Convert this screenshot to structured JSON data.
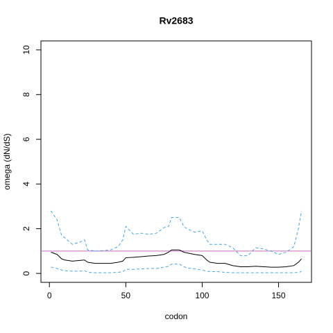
{
  "chart_data": {
    "type": "line",
    "title": "Rv2683",
    "xlabel": "codon",
    "ylabel": "omega (dN/dS)",
    "x": [
      1,
      5,
      8,
      10,
      15,
      20,
      23,
      25,
      30,
      35,
      40,
      45,
      48,
      50,
      55,
      60,
      65,
      70,
      75,
      78,
      80,
      85,
      88,
      90,
      95,
      100,
      103,
      105,
      110,
      115,
      120,
      125,
      130,
      135,
      140,
      145,
      150,
      155,
      160,
      163,
      165
    ],
    "series": [
      {
        "color": "#3ea6e8",
        "linestyle": "dashed",
        "values": [
          2.8,
          2.4,
          1.7,
          1.6,
          1.3,
          1.4,
          1.5,
          1.05,
          1.0,
          1.02,
          1.05,
          1.2,
          1.5,
          2.1,
          1.75,
          1.8,
          1.75,
          1.8,
          2.05,
          2.1,
          2.5,
          2.5,
          2.1,
          2.0,
          1.85,
          1.9,
          1.5,
          1.3,
          1.3,
          1.3,
          1.15,
          0.8,
          0.8,
          1.15,
          1.1,
          1.0,
          0.85,
          0.95,
          1.2,
          2.0,
          2.8
        ]
      },
      {
        "color": "#000000",
        "linestyle": "solid",
        "values": [
          0.95,
          0.85,
          0.65,
          0.6,
          0.55,
          0.58,
          0.6,
          0.5,
          0.45,
          0.45,
          0.45,
          0.5,
          0.55,
          0.7,
          0.72,
          0.75,
          0.78,
          0.8,
          0.85,
          0.95,
          1.05,
          1.05,
          0.95,
          0.92,
          0.85,
          0.8,
          0.6,
          0.5,
          0.45,
          0.45,
          0.35,
          0.3,
          0.3,
          0.32,
          0.3,
          0.28,
          0.28,
          0.3,
          0.35,
          0.5,
          0.65
        ]
      },
      {
        "color": "#3ea6e8",
        "linestyle": "dashed",
        "values": [
          0.28,
          0.22,
          0.15,
          0.12,
          0.1,
          0.1,
          0.12,
          0.05,
          0.03,
          0.03,
          0.03,
          0.05,
          0.08,
          0.18,
          0.18,
          0.2,
          0.22,
          0.22,
          0.28,
          0.32,
          0.42,
          0.42,
          0.3,
          0.25,
          0.2,
          0.15,
          0.1,
          0.08,
          0.08,
          0.05,
          0.03,
          0.03,
          0.03,
          0.03,
          0.03,
          0.03,
          0.03,
          0.03,
          0.03,
          0.05,
          0.08
        ]
      }
    ],
    "hline": {
      "value": 1,
      "color": "#cc66cc"
    },
    "xlim": [
      -5.56,
      171.56
    ],
    "ylim": [
      -0.4,
      10.4
    ],
    "xticks": [
      0,
      50,
      100,
      150
    ],
    "yticks": [
      0,
      2,
      4,
      6,
      8,
      10
    ]
  }
}
